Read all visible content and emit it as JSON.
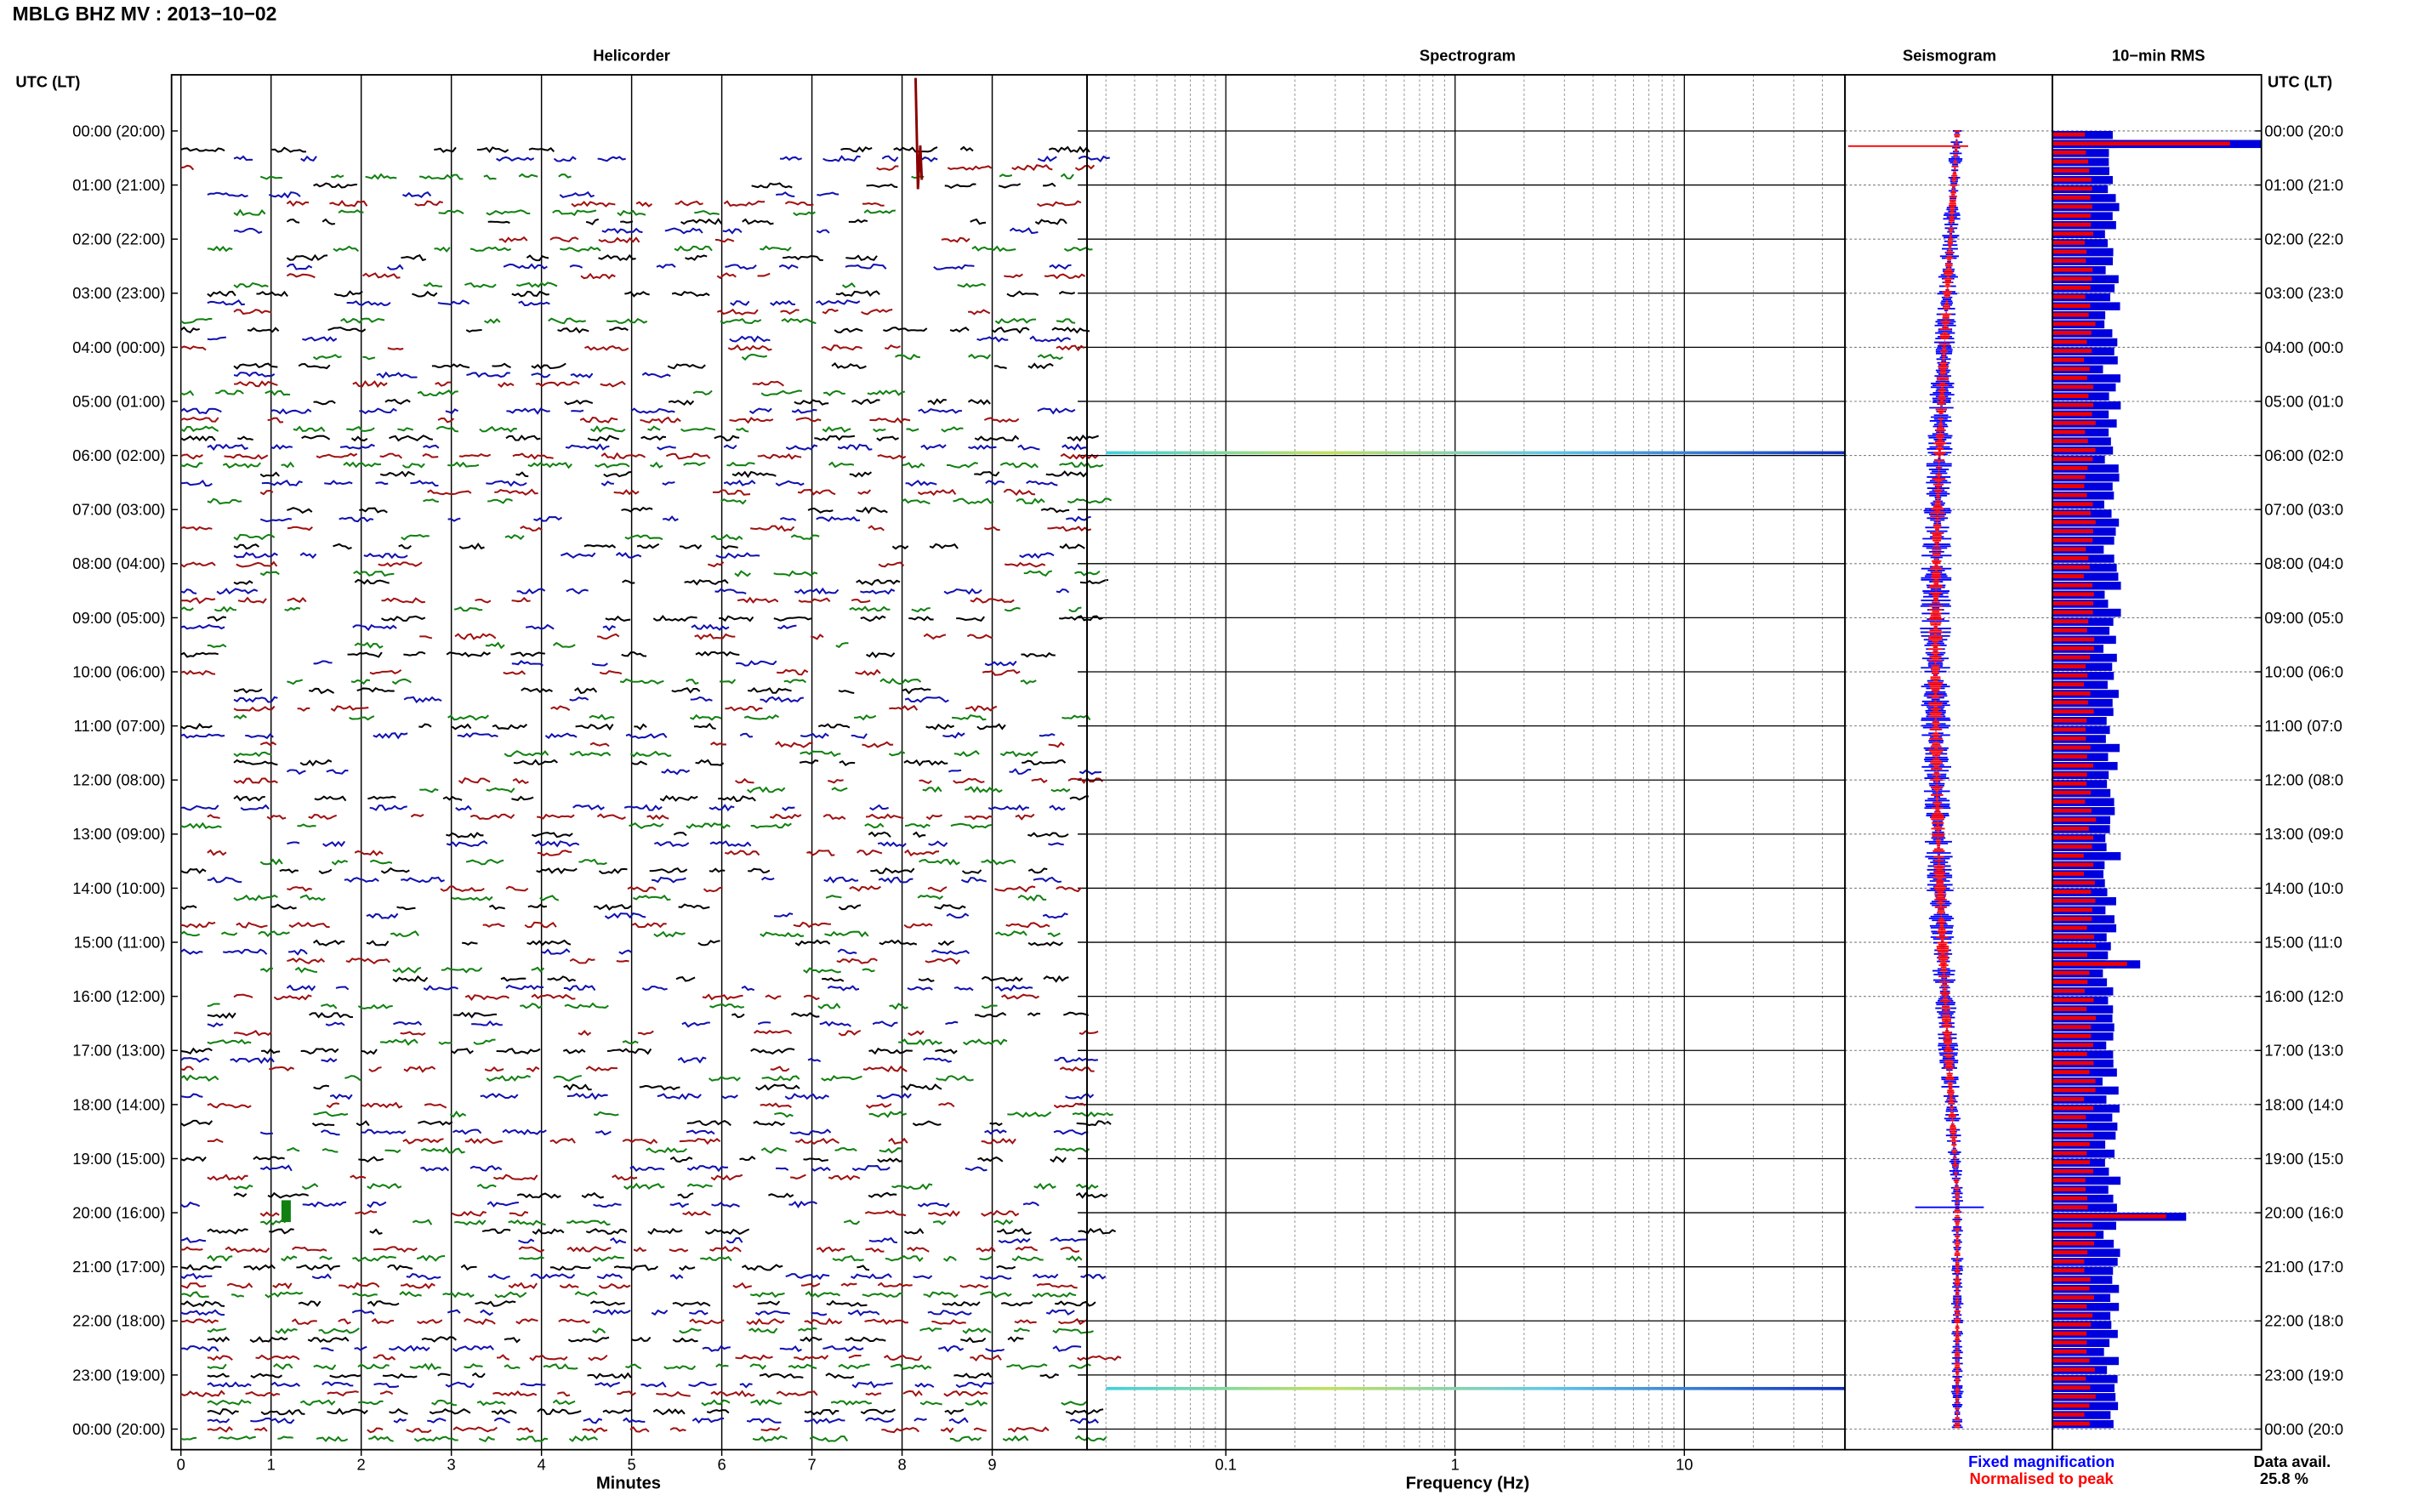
{
  "title": "MBLG BHZ MV : 2013−10−02",
  "panels": {
    "helicorder": "Helicorder",
    "spectrogram": "Spectrogram",
    "seismogram": "Seismogram",
    "rms": "10−min RMS"
  },
  "axis_header": "UTC (LT)",
  "time_labels": [
    "00:00 (20:00)",
    "01:00 (21:00)",
    "02:00 (22:00)",
    "03:00 (23:00)",
    "04:00 (00:00)",
    "05:00 (01:00)",
    "06:00 (02:00)",
    "07:00 (03:00)",
    "08:00 (04:00)",
    "09:00 (05:00)",
    "10:00 (06:00)",
    "11:00 (07:00)",
    "12:00 (08:00)",
    "13:00 (09:00)",
    "14:00 (10:00)",
    "15:00 (11:00)",
    "16:00 (12:00)",
    "17:00 (13:00)",
    "18:00 (14:00)",
    "19:00 (15:00)",
    "20:00 (16:00)",
    "21:00 (17:00)",
    "22:00 (18:00)",
    "23:00 (19:00)",
    "00:00 (20:00)"
  ],
  "time_labels_right": [
    "00:00 (20:0",
    "01:00 (21:0",
    "02:00 (22:0",
    "03:00 (23:0",
    "04:00 (00:0",
    "05:00 (01:0",
    "06:00 (02:0",
    "07:00 (03:0",
    "08:00 (04:0",
    "09:00 (05:0",
    "10:00 (06:0",
    "11:00 (07:0",
    "12:00 (08:0",
    "13:00 (09:0",
    "14:00 (10:0",
    "15:00 (11:0",
    "16:00 (12:0",
    "17:00 (13:0",
    "18:00 (14:0",
    "19:00 (15:0",
    "20:00 (16:0",
    "21:00 (17:0",
    "22:00 (18:0",
    "23:00 (19:0",
    "00:00 (20:0"
  ],
  "chart_data": [
    {
      "type": "line",
      "panel": "Helicorder",
      "xlabel": "Minutes",
      "x_ticks": [
        "0",
        "1",
        "2",
        "3",
        "4",
        "5",
        "6",
        "7",
        "8",
        "9"
      ],
      "xlim": [
        0,
        10
      ],
      "trace_colors": [
        "#000000",
        "#1010b0",
        "#a01010",
        "#108010"
      ],
      "traces_per_hour": 6,
      "events": [
        {
          "time_utc": "00:30",
          "minute": 8.15,
          "color": "#8b0000",
          "description_value": "large spike"
        },
        {
          "time_utc": "20:00",
          "minute": 1.15,
          "color": "#108010",
          "description_value": "burst"
        }
      ]
    },
    {
      "type": "heatmap",
      "panel": "Spectrogram",
      "xlabel": "Frequency (Hz)",
      "x_scale": "log",
      "x_ticks": [
        "0.1",
        "1",
        "10"
      ],
      "xlim": [
        0.03,
        50
      ],
      "bands": [
        {
          "time_utc": "05:57",
          "fmin": 0.03,
          "fmax": 50
        },
        {
          "time_utc": "23:15",
          "fmin": 0.03,
          "fmax": 50
        }
      ]
    },
    {
      "type": "line",
      "panel": "Seismogram",
      "series": [
        {
          "name": "Fixed magnification",
          "color": "#0000ff"
        },
        {
          "name": "Normalised to peak",
          "color": "#ff0000"
        }
      ],
      "legend": "bottom"
    },
    {
      "type": "bar",
      "panel": "10−min RMS",
      "bars_per_hour": 6,
      "colors": {
        "fixed": "#0000dd",
        "normalised": "#ee0000"
      },
      "peaks": [
        {
          "time_utc": "00:10",
          "relative_length": 1.0
        },
        {
          "time_utc": "20:00",
          "relative_length": 0.64
        },
        {
          "time_utc": "15:20",
          "relative_length": 0.42
        }
      ]
    }
  ],
  "legend": {
    "fixed": "Fixed magnification",
    "normalised": "Normalised to peak",
    "fixed_color": "#0000ff",
    "normalised_color": "#ff0000"
  },
  "data_avail_label": "Data avail.",
  "data_avail_value": "25.8 %"
}
